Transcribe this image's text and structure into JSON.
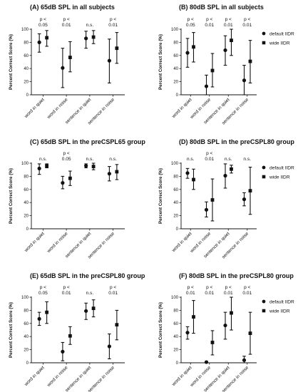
{
  "legend": [
    {
      "name": "default IIDR",
      "marker": "circle"
    },
    {
      "name": "wide IIDR",
      "marker": "square"
    }
  ],
  "colors": {
    "marker": "#111111",
    "axis": "#111111"
  },
  "chart_data": [
    {
      "type": "scatter",
      "title": "(A)  65dB SPL in all subjects",
      "ylabel": "Percent Correct Score (%)",
      "ylim": [
        0,
        100
      ],
      "yticks": [
        0,
        20,
        40,
        60,
        80,
        100
      ],
      "categories": [
        "word in quiet",
        "word in noise",
        "sentence in quiet",
        "sentence in noise"
      ],
      "significance": [
        {
          "line1": "p <",
          "line2": "0.05"
        },
        {
          "line1": "p <",
          "line2": "0.01"
        },
        {
          "line1": "n.s.",
          "line2": ""
        },
        {
          "line1": "p <",
          "line2": "0.01"
        }
      ],
      "series": [
        {
          "name": "default IIDR",
          "mean": [
            80,
            41,
            86,
            52
          ],
          "low": [
            65,
            11,
            71,
            18
          ],
          "high": [
            93,
            71,
            97,
            85
          ]
        },
        {
          "name": "wide IIDR",
          "mean": [
            87,
            57,
            88,
            71
          ],
          "low": [
            74,
            35,
            78,
            48
          ],
          "high": [
            98,
            81,
            98,
            95
          ]
        }
      ]
    },
    {
      "type": "scatter",
      "title": "(B)  80dB SPL in all subjects",
      "ylabel": "Percent Correct Score (%)",
      "ylim": [
        0,
        100
      ],
      "yticks": [
        0,
        20,
        40,
        60,
        80,
        100
      ],
      "categories": [
        "word in quiet",
        "word in noise",
        "sentence in quiet",
        "sentence in noise"
      ],
      "significance": [
        {
          "line1": "p <",
          "line2": "0.05"
        },
        {
          "line1": "p <",
          "line2": "0.01"
        },
        {
          "line1": "p <",
          "line2": "0.01"
        },
        {
          "line1": "p <",
          "line2": "0.01"
        }
      ],
      "series": [
        {
          "name": "default IIDR",
          "mean": [
            64,
            13,
            68,
            22
          ],
          "low": [
            42,
            0,
            45,
            0
          ],
          "high": [
            86,
            30,
            90,
            45
          ]
        },
        {
          "name": "wide IIDR",
          "mean": [
            73,
            37,
            83,
            51
          ],
          "low": [
            50,
            12,
            60,
            18
          ],
          "high": [
            95,
            63,
            100,
            83
          ]
        }
      ]
    },
    {
      "type": "scatter",
      "title": "(C)  65dB SPL in the preCSPL65 group",
      "ylabel": "Percent Correct Score (%)",
      "ylim": [
        0,
        100
      ],
      "yticks": [
        0,
        20,
        40,
        60,
        80,
        100
      ],
      "categories": [
        "word in quiet",
        "word in noise",
        "sentence in quiet",
        "sentence in noise"
      ],
      "significance": [
        {
          "line1": "n.s.",
          "line2": ""
        },
        {
          "line1": "p <",
          "line2": "0.05"
        },
        {
          "line1": "n.s.",
          "line2": ""
        },
        {
          "line1": "n.s.",
          "line2": ""
        }
      ],
      "series": [
        {
          "name": "default IIDR",
          "mean": [
            92,
            70,
            96,
            84
          ],
          "low": [
            83,
            61,
            93,
            73
          ],
          "high": [
            99,
            80,
            99,
            95
          ]
        },
        {
          "name": "wide IIDR",
          "mean": [
            96,
            77,
            95,
            87
          ],
          "low": [
            93,
            66,
            90,
            75
          ],
          "high": [
            99,
            88,
            100,
            98
          ]
        }
      ]
    },
    {
      "type": "scatter",
      "title": "(D)  80dB SPL in the preCSPL80 group",
      "ylabel": "Percent Correct Score (%)",
      "ylim": [
        0,
        100
      ],
      "yticks": [
        0,
        20,
        40,
        60,
        80,
        100
      ],
      "categories": [
        "word in quiet",
        "word in noise",
        "sentence in quiet",
        "sentence in noise"
      ],
      "significance": [
        {
          "line1": "n.s.",
          "line2": ""
        },
        {
          "line1": "p <",
          "line2": "0.01"
        },
        {
          "line1": "n.s.",
          "line2": ""
        },
        {
          "line1": "n.s.",
          "line2": ""
        }
      ],
      "series": [
        {
          "name": "default IIDR",
          "mean": [
            85,
            29,
            81,
            45
          ],
          "low": [
            77,
            18,
            62,
            35
          ],
          "high": [
            92,
            41,
            99,
            55
          ]
        },
        {
          "name": "wide IIDR",
          "mean": [
            75,
            44,
            91,
            58
          ],
          "low": [
            60,
            12,
            85,
            22
          ],
          "high": [
            91,
            76,
            97,
            94
          ]
        }
      ]
    },
    {
      "type": "scatter",
      "title": "(E)  65dB SPL in the preCSPL80 group",
      "ylabel": "Percent Correct Score (%)",
      "ylim": [
        0,
        100
      ],
      "yticks": [
        0,
        20,
        40,
        60,
        80,
        100
      ],
      "categories": [
        "word in quiet",
        "word in noise",
        "sentence in quiet",
        "sentence in noise"
      ],
      "significance": [
        {
          "line1": "p <",
          "line2": "0.05"
        },
        {
          "line1": "p <",
          "line2": "0.01"
        },
        {
          "line1": "n.s.",
          "line2": ""
        },
        {
          "line1": "p <",
          "line2": "0.01"
        }
      ],
      "series": [
        {
          "name": "default IIDR",
          "mean": [
            67,
            17,
            79,
            25
          ],
          "low": [
            57,
            3,
            66,
            6
          ],
          "high": [
            77,
            31,
            91,
            44
          ]
        },
        {
          "name": "wide IIDR",
          "mean": [
            77,
            41,
            83,
            58
          ],
          "low": [
            60,
            28,
            70,
            35
          ],
          "high": [
            93,
            55,
            96,
            80
          ]
        }
      ]
    },
    {
      "type": "scatter",
      "title": "(F)  80dB SPL in the preCSPL80 group",
      "ylabel": "Percent Correct Score (%)",
      "ylim": [
        0,
        100
      ],
      "yticks": [
        0,
        20,
        40,
        60,
        80,
        100
      ],
      "categories": [
        "word in quiet",
        "word in noise",
        "sentence in quiet",
        "sentence in noise"
      ],
      "significance": [
        {
          "line1": "p <",
          "line2": "0.01"
        },
        {
          "line1": "p <",
          "line2": "0.01"
        },
        {
          "line1": "p <",
          "line2": "0.01"
        },
        {
          "line1": "p <",
          "line2": "0.01"
        }
      ],
      "series": [
        {
          "name": "default IIDR",
          "mean": [
            46,
            1,
            57,
            4
          ],
          "low": [
            36,
            0,
            36,
            0
          ],
          "high": [
            55,
            2,
            77,
            10
          ]
        },
        {
          "name": "wide IIDR",
          "mean": [
            70,
            31,
            76,
            45
          ],
          "low": [
            45,
            12,
            50,
            13
          ],
          "high": [
            95,
            49,
            100,
            77
          ]
        }
      ]
    }
  ]
}
